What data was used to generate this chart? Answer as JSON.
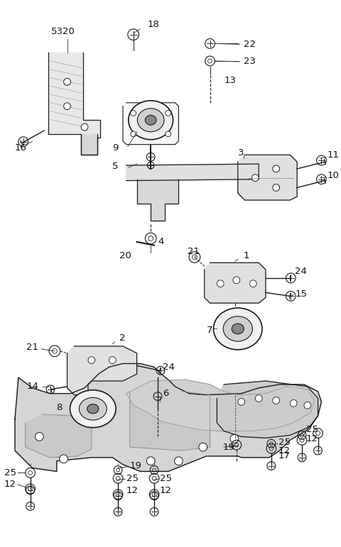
{
  "bg_color": "#ffffff",
  "fig_width": 4.8,
  "fig_height": 7.71,
  "dpi": 100,
  "line_color": "#1a1a1a",
  "fill_light": "#e8e8e8",
  "fill_med": "#cccccc",
  "fill_dark": "#999999"
}
